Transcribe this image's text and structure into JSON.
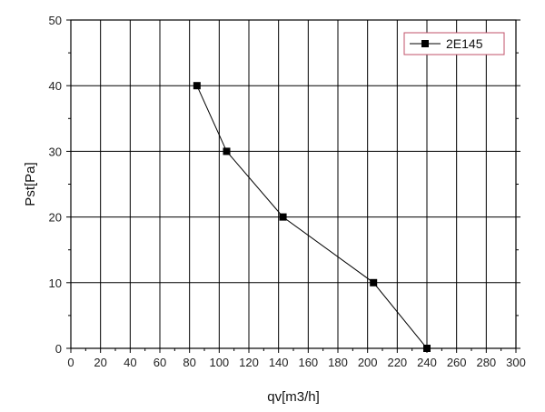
{
  "chart_data": {
    "type": "line",
    "xlabel": "qv[m3/h]",
    "ylabel": "Pst[Pa]",
    "xlim": [
      0,
      300
    ],
    "ylim": [
      0,
      50
    ],
    "xticks": [
      0,
      20,
      40,
      60,
      80,
      100,
      120,
      140,
      160,
      180,
      200,
      220,
      240,
      260,
      280,
      300
    ],
    "yticks": [
      0,
      10,
      20,
      30,
      40,
      50
    ],
    "grid": true,
    "legend_position": "top-right",
    "series": [
      {
        "name": "2E145",
        "marker": "square",
        "color": "#000000",
        "x": [
          85,
          105,
          143,
          204,
          240
        ],
        "y": [
          40,
          30,
          20,
          10,
          0
        ]
      }
    ]
  },
  "colors": {
    "line": "#000000",
    "grid": "#000000",
    "legend_border": "#c0506a"
  }
}
